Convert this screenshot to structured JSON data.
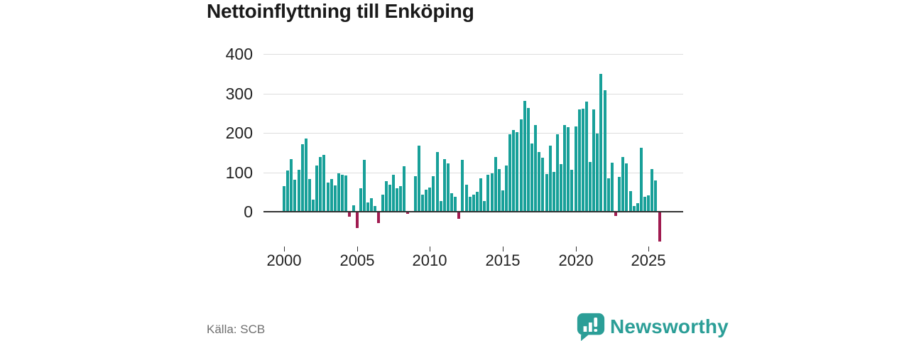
{
  "title": "Nettoinflyttning till Enköping",
  "source": "Källa: SCB",
  "branding": {
    "logo_icon": "newsworthy-speech-bubble-bar-chart-icon",
    "wordmark": "Newsworthy"
  },
  "colors": {
    "bar_positive": "#18a099",
    "bar_negative": "#a01b50",
    "gridline": "#dddddd",
    "zero_line": "#333333",
    "axis_text": "#222222",
    "title_text": "#1a1a1a",
    "source_text": "#6f6f6f",
    "brand": "#2b9e97"
  },
  "chart_data": {
    "type": "bar",
    "title": "Nettoinflyttning till Enköping",
    "frequency": "quarterly",
    "start_period": "2000 Q1",
    "end_period": "2025 Q4",
    "xlabel": "",
    "ylabel": "",
    "ylim": [
      -85,
      400
    ],
    "grid": "horizontal",
    "legend": "none",
    "y_ticks": [
      0,
      100,
      200,
      300,
      400
    ],
    "y_tick_labels": [
      "0",
      "100",
      "200",
      "300",
      "400"
    ],
    "x_tick_years": [
      2000,
      2005,
      2010,
      2015,
      2020,
      2025
    ],
    "x_tick_labels": [
      "2000",
      "2005",
      "2010",
      "2015",
      "2020",
      "2025"
    ],
    "values": [
      65,
      105,
      134,
      81,
      106,
      171,
      185,
      83,
      30,
      118,
      139,
      144,
      74,
      82,
      67,
      97,
      94,
      91,
      -13,
      17,
      -42,
      60,
      132,
      23,
      35,
      15,
      -28,
      43,
      78,
      69,
      93,
      59,
      65,
      115,
      -6,
      2,
      90,
      168,
      43,
      55,
      61,
      90,
      151,
      27,
      133,
      123,
      47,
      37,
      -18,
      132,
      69,
      37,
      43,
      51,
      85,
      27,
      93,
      97,
      139,
      108,
      54,
      117,
      196,
      208,
      202,
      235,
      281,
      263,
      173,
      220,
      151,
      137,
      95,
      167,
      101,
      196,
      121,
      220,
      214,
      107,
      216,
      259,
      261,
      280,
      126,
      259,
      198,
      350,
      308,
      84,
      125,
      -11,
      89,
      138,
      122,
      53,
      14,
      21,
      162,
      38,
      42,
      108,
      80,
      -75
    ]
  }
}
